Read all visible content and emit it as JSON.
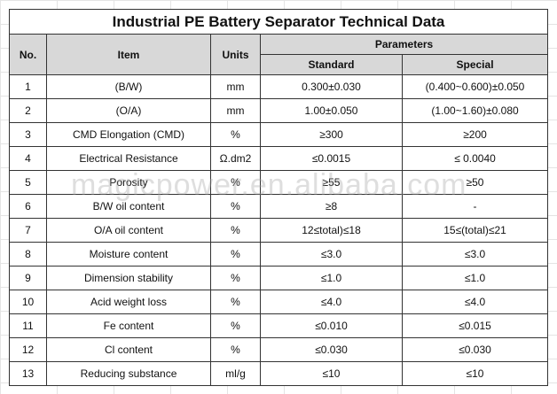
{
  "title": "Industrial PE Battery Separator Technical Data",
  "header": {
    "no": "No.",
    "item": "Item",
    "units": "Units",
    "parameters": "Parameters",
    "standard": "Standard",
    "special": "Special"
  },
  "rows": [
    [
      "1",
      "(B/W)",
      "mm",
      "0.300±0.030",
      "(0.400~0.600)±0.050"
    ],
    [
      "2",
      "(O/A)",
      "mm",
      "1.00±0.050",
      "(1.00~1.60)±0.080"
    ],
    [
      "3",
      "CMD Elongation (CMD)",
      "%",
      "≥300",
      "≥200"
    ],
    [
      "4",
      "Electrical Resistance",
      "Ω.dm2",
      "≤0.0015",
      "≤ 0.0040"
    ],
    [
      "5",
      "Porosity",
      "%",
      "≥55",
      "≥50"
    ],
    [
      "6",
      "B/W oil content",
      "%",
      "≥8",
      "-"
    ],
    [
      "7",
      "O/A oil content",
      "%",
      "12≤total)≤18",
      "15≤(total)≤21"
    ],
    [
      "8",
      "Moisture content",
      "%",
      "≤3.0",
      "≤3.0"
    ],
    [
      "9",
      "Dimension stability",
      "%",
      "≤1.0",
      "≤1.0"
    ],
    [
      "10",
      "Acid weight loss",
      "%",
      "≤4.0",
      "≤4.0"
    ],
    [
      "11",
      "Fe content",
      "%",
      "≤0.010",
      "≤0.015"
    ],
    [
      "12",
      "Cl content",
      "%",
      "≤0.030",
      "≤0.030"
    ],
    [
      "13",
      "Reducing substance",
      "ml/g",
      "≤10",
      "≤10"
    ]
  ],
  "watermark": "magicpower.en.alibaba.com"
}
